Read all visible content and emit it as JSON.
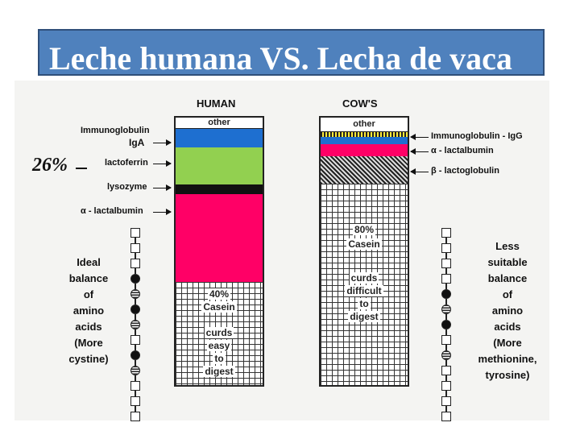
{
  "title": "Leche humana VS. Lecha de vaca",
  "human": {
    "heading": "HUMAN",
    "other": "other",
    "casein_pct": "40%",
    "casein": "Casein",
    "curds": [
      "curds",
      "easy",
      "to",
      "digest"
    ],
    "labels": [
      "Immunoglobulin",
      "IgA",
      "lactoferrin",
      "lysozyme",
      "α - lactalbumin"
    ],
    "colors": {
      "iga": "#1e6fd0",
      "lactoferrin": "#92d050",
      "lysozyme": "#111111",
      "lactalbumin": "#ff0066"
    }
  },
  "cow": {
    "heading": "COW'S",
    "other": "other",
    "casein_pct": "80%",
    "casein": "Casein",
    "curds": [
      "curds",
      "difficult",
      "to",
      "digest"
    ],
    "labels": [
      "Immunoglobulin - IgG",
      "α - lactalbumin",
      "β - lactoglobulin"
    ],
    "colors": {
      "igg": "#1e6fd0",
      "lactalbumin": "#ff0066"
    }
  },
  "annotation": "26%",
  "left_note": "Ideal\nbalance\nof\namino\nacids\n(More\ncystine)",
  "right_note": "Less\nsuitable\nbalance\nof\namino\nacids\n(More\nmethionine,\ntyrosine)"
}
